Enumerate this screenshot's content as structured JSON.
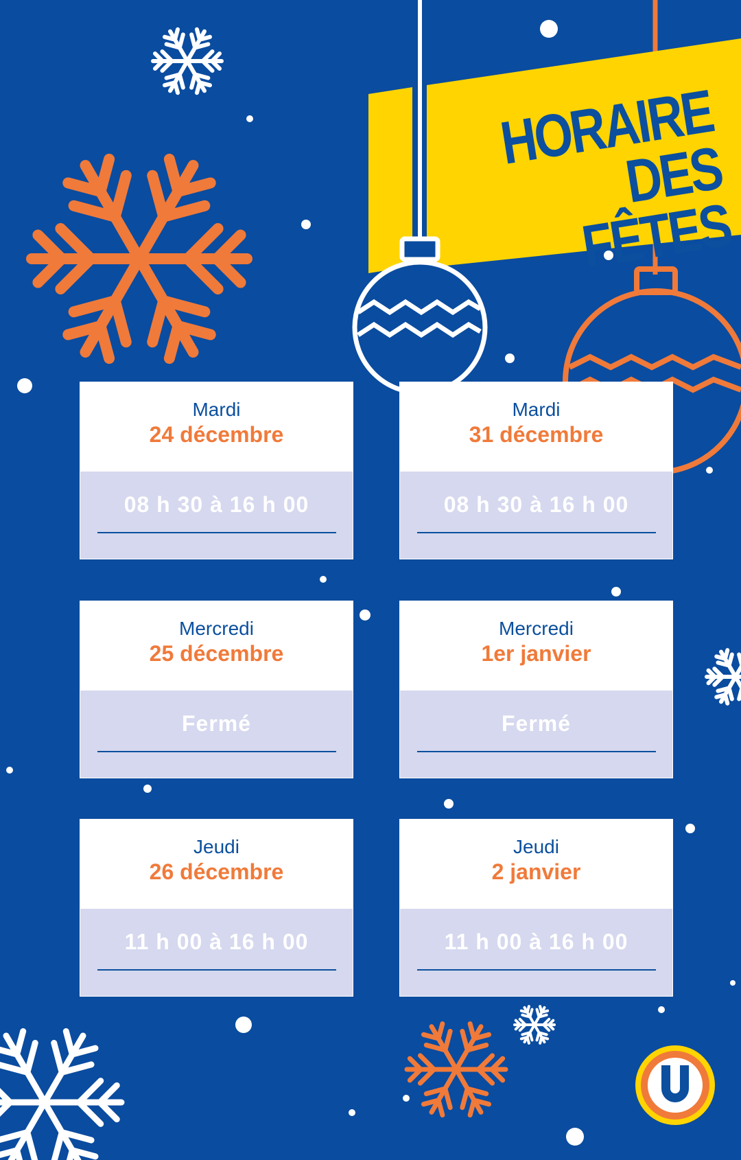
{
  "title": {
    "line1": "HORAIRE",
    "line2": "DES FÊTES"
  },
  "colors": {
    "background": "#0a4c9f",
    "accent": "#f07a3a",
    "banner": "#ffd400",
    "card_bottom": "#d5d8ee",
    "text_blue": "#0b4f9e"
  },
  "schedule": [
    {
      "day": "Mardi",
      "date": "24 décembre",
      "hours": "08 h 30 à 16 h 00"
    },
    {
      "day": "Mardi",
      "date": "31 décembre",
      "hours": "08 h 30 à 16 h 00"
    },
    {
      "day": "Mercredi",
      "date": "25 décembre",
      "hours": "Fermé"
    },
    {
      "day": "Mercredi",
      "date": "1er janvier",
      "hours": "Fermé"
    },
    {
      "day": "Jeudi",
      "date": "26 décembre",
      "hours": "11 h 00 à 16 h 00"
    },
    {
      "day": "Jeudi",
      "date": "2 janvier",
      "hours": "11 h 00 à 16 h 00"
    }
  ],
  "logo": {
    "letter": "U"
  },
  "icons": [
    "snowflake-icon",
    "ornament-icon",
    "logo-icon"
  ]
}
